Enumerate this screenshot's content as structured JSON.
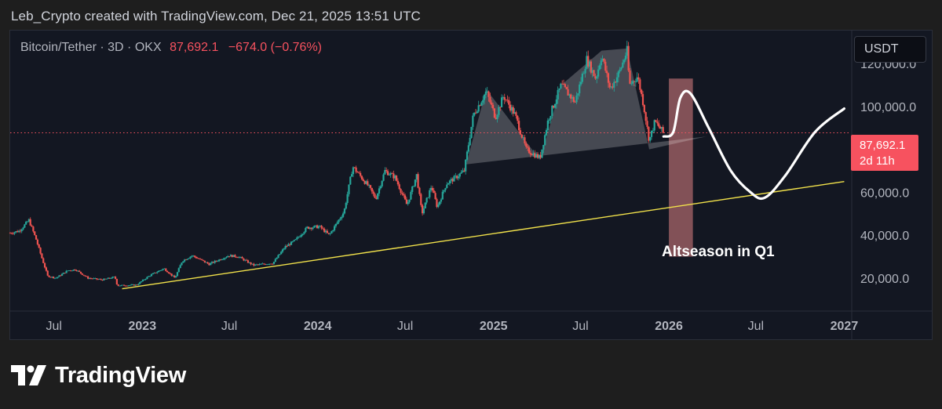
{
  "header": {
    "credit": "Leb_Crypto created with TradingView.com, Dec 21, 2025 13:51 UTC"
  },
  "legend": {
    "symbol": "Bitcoin/Tether · 3D · OKX",
    "last_price": "87,692.1",
    "change": "−674.0 (−0.76%)"
  },
  "currency_button": {
    "label": "USDT"
  },
  "price_label": {
    "price": "87,692.1",
    "countdown": "2d 11h"
  },
  "annotation": {
    "text": "Altseason in Q1"
  },
  "logo": {
    "text": "TradingView"
  },
  "colors": {
    "background": "#131722",
    "up_candle": "#26a69a",
    "down_candle": "#ef5350",
    "trendline": "#f2e24b",
    "projection": "#ffffff",
    "price_line": "#f7525f",
    "highlight_zone": "#f28b8b"
  },
  "chart_data": {
    "type": "candlestick",
    "title": "Bitcoin/Tether · 3D · OKX",
    "y_axis": {
      "ticks": [
        20000,
        40000,
        60000,
        100000,
        120000
      ],
      "tick_labels": [
        "20,000.0",
        "40,000.0",
        "60,000.0",
        "100,000.0",
        "120,000.0"
      ],
      "range": [
        5000,
        135000
      ]
    },
    "x_axis": {
      "range": [
        "2022-04-01",
        "2027-01-15"
      ],
      "ticks": [
        {
          "date": "2022-07-01",
          "label": "Jul"
        },
        {
          "date": "2023-01-01",
          "label": "2023"
        },
        {
          "date": "2023-07-01",
          "label": "Jul"
        },
        {
          "date": "2024-01-01",
          "label": "2024"
        },
        {
          "date": "2024-07-01",
          "label": "Jul"
        },
        {
          "date": "2025-01-01",
          "label": "2025"
        },
        {
          "date": "2025-07-01",
          "label": "Jul"
        },
        {
          "date": "2026-01-01",
          "label": "2026"
        },
        {
          "date": "2026-07-01",
          "label": "Jul"
        },
        {
          "date": "2027-01-01",
          "label": "2027"
        }
      ]
    },
    "price_series": [
      [
        "2022-04-01",
        41000
      ],
      [
        "2022-04-20",
        42000
      ],
      [
        "2022-05-10",
        47000
      ],
      [
        "2022-05-25",
        38000
      ],
      [
        "2022-06-05",
        30000
      ],
      [
        "2022-06-18",
        21000
      ],
      [
        "2022-07-05",
        20000
      ],
      [
        "2022-07-30",
        23500
      ],
      [
        "2022-08-15",
        24000
      ],
      [
        "2022-09-10",
        20000
      ],
      [
        "2022-10-10",
        19200
      ],
      [
        "2022-11-05",
        20500
      ],
      [
        "2022-11-10",
        16500
      ],
      [
        "2022-12-20",
        16800
      ],
      [
        "2023-01-15",
        21000
      ],
      [
        "2023-02-15",
        24500
      ],
      [
        "2023-03-10",
        20000
      ],
      [
        "2023-03-25",
        28000
      ],
      [
        "2023-04-15",
        30500
      ],
      [
        "2023-05-20",
        26500
      ],
      [
        "2023-06-30",
        30500
      ],
      [
        "2023-07-20",
        30000
      ],
      [
        "2023-08-20",
        26000
      ],
      [
        "2023-09-30",
        27000
      ],
      [
        "2023-10-25",
        34500
      ],
      [
        "2023-11-15",
        37500
      ],
      [
        "2023-12-10",
        43500
      ],
      [
        "2024-01-05",
        44000
      ],
      [
        "2024-01-25",
        40000
      ],
      [
        "2024-02-25",
        51000
      ],
      [
        "2024-03-14",
        72000
      ],
      [
        "2024-04-15",
        63000
      ],
      [
        "2024-05-01",
        57000
      ],
      [
        "2024-05-20",
        70000
      ],
      [
        "2024-06-10",
        67000
      ],
      [
        "2024-07-05",
        54000
      ],
      [
        "2024-07-25",
        68000
      ],
      [
        "2024-08-05",
        50000
      ],
      [
        "2024-08-25",
        63000
      ],
      [
        "2024-09-06",
        53000
      ],
      [
        "2024-09-25",
        64000
      ],
      [
        "2024-10-15",
        67000
      ],
      [
        "2024-11-01",
        70000
      ],
      [
        "2024-11-20",
        96000
      ],
      [
        "2024-12-17",
        107000
      ],
      [
        "2025-01-05",
        95000
      ],
      [
        "2025-01-22",
        105000
      ],
      [
        "2025-02-15",
        96000
      ],
      [
        "2025-03-10",
        80000
      ],
      [
        "2025-04-08",
        76000
      ],
      [
        "2025-04-25",
        94000
      ],
      [
        "2025-05-22",
        110000
      ],
      [
        "2025-06-20",
        102000
      ],
      [
        "2025-07-14",
        122000
      ],
      [
        "2025-08-02",
        113000
      ],
      [
        "2025-08-14",
        124000
      ],
      [
        "2025-09-01",
        108000
      ],
      [
        "2025-09-20",
        116000
      ],
      [
        "2025-10-06",
        126000
      ],
      [
        "2025-10-11",
        110000
      ],
      [
        "2025-10-28",
        114000
      ],
      [
        "2025-11-10",
        100000
      ],
      [
        "2025-11-21",
        84000
      ],
      [
        "2025-12-03",
        93000
      ],
      [
        "2025-12-21",
        87692.1
      ]
    ],
    "last_price": 87692.1,
    "support_trendline": [
      [
        "2022-11-20",
        15000
      ],
      [
        "2027-01-01",
        65000
      ]
    ],
    "head_and_shoulders_pattern": [
      [
        "2024-11-05",
        73000
      ],
      [
        "2024-12-17",
        108000
      ],
      [
        "2025-04-08",
        75000
      ],
      [
        "2025-05-22",
        110000
      ],
      [
        "2025-08-14",
        126000
      ],
      [
        "2025-10-06",
        127000
      ],
      [
        "2025-11-21",
        80000
      ],
      [
        "2026-03-20",
        86000
      ]
    ],
    "projection_path": [
      [
        "2025-12-21",
        86000
      ],
      [
        "2026-01-10",
        88000
      ],
      [
        "2026-01-25",
        104000
      ],
      [
        "2026-02-15",
        106000
      ],
      [
        "2026-03-25",
        90000
      ],
      [
        "2026-05-10",
        70000
      ],
      [
        "2026-06-20",
        60000
      ],
      [
        "2026-07-20",
        57500
      ],
      [
        "2026-09-01",
        68000
      ],
      [
        "2026-11-01",
        88000
      ],
      [
        "2027-01-01",
        99000
      ]
    ],
    "highlight_zone": {
      "x_range": [
        "2026-01-01",
        "2026-02-20"
      ],
      "y_range": [
        30000,
        113000
      ],
      "label": "Altseason in Q1"
    }
  }
}
